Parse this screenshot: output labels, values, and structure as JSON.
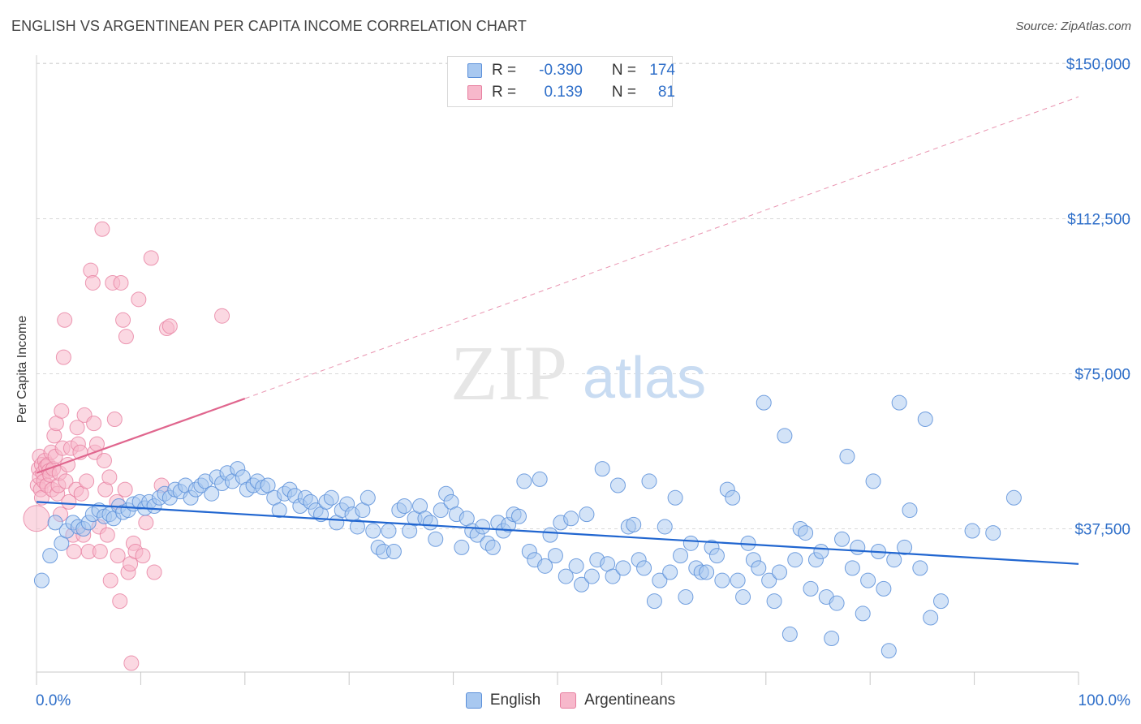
{
  "header": {
    "title": "ENGLISH VS ARGENTINEAN PER CAPITA INCOME CORRELATION CHART",
    "source": "Source: ZipAtlas.com"
  },
  "watermark": {
    "zip": "ZIP",
    "atlas": "atlas"
  },
  "stats": {
    "english": {
      "r_label": "R =",
      "r_value": "-0.390",
      "n_label": "N =",
      "n_value": "174"
    },
    "argentineans": {
      "r_label": "R =",
      "r_value": "0.139",
      "n_label": "N =",
      "n_value": "81"
    }
  },
  "legend": {
    "english": "English",
    "argentineans": "Argentineans"
  },
  "colors": {
    "english_fill": "#a8c8f0",
    "english_stroke": "#5b8fd9",
    "english_line": "#2166d0",
    "argentinean_fill": "#f7b8cb",
    "argentinean_stroke": "#e77fa0",
    "argentinean_line": "#e0668e",
    "tick_label": "#2f6fc9",
    "grid": "#d9d9d9"
  },
  "chart_data": {
    "type": "scatter",
    "title": "ENGLISH VS ARGENTINEAN PER CAPITA INCOME CORRELATION CHART",
    "xlabel": "",
    "ylabel": "Per Capita Income",
    "x_unit": "percent",
    "xlim": [
      0,
      100
    ],
    "ylim": [
      0,
      155000
    ],
    "x_tick_labels": [
      "0.0%",
      "100.0%"
    ],
    "y_ticks": [
      37500,
      75000,
      112500,
      150000
    ],
    "y_tick_labels": [
      "$37,500",
      "$75,000",
      "$112,500",
      "$150,000"
    ],
    "grid": "horizontal dashed",
    "legend_position": "bottom-center",
    "series": [
      {
        "name": "English",
        "r": -0.39,
        "n": 174,
        "trend": {
          "x": [
            0,
            100
          ],
          "y": [
            44000,
            29000
          ],
          "style": "solid"
        },
        "points": [
          [
            0.5,
            25000
          ],
          [
            1.3,
            31000
          ],
          [
            1.8,
            39000
          ],
          [
            2.4,
            34000
          ],
          [
            2.9,
            37000
          ],
          [
            3.5,
            39000
          ],
          [
            4.0,
            38000
          ],
          [
            4.5,
            37500
          ],
          [
            5.0,
            39000
          ],
          [
            5.4,
            41000
          ],
          [
            6.0,
            42000
          ],
          [
            6.5,
            40500
          ],
          [
            7.0,
            41000
          ],
          [
            7.4,
            40000
          ],
          [
            7.9,
            43000
          ],
          [
            8.3,
            41500
          ],
          [
            8.8,
            42000
          ],
          [
            9.3,
            43500
          ],
          [
            9.9,
            44000
          ],
          [
            10.4,
            42500
          ],
          [
            10.8,
            44000
          ],
          [
            11.3,
            43000
          ],
          [
            11.8,
            45000
          ],
          [
            12.3,
            46000
          ],
          [
            12.8,
            45000
          ],
          [
            13.3,
            47000
          ],
          [
            13.8,
            46500
          ],
          [
            14.3,
            48000
          ],
          [
            14.8,
            45000
          ],
          [
            15.3,
            47000
          ],
          [
            15.8,
            48000
          ],
          [
            16.2,
            49000
          ],
          [
            16.8,
            46000
          ],
          [
            17.3,
            50000
          ],
          [
            17.8,
            48500
          ],
          [
            18.3,
            51000
          ],
          [
            18.8,
            49000
          ],
          [
            19.3,
            52000
          ],
          [
            19.8,
            50000
          ],
          [
            20.2,
            47000
          ],
          [
            20.8,
            48000
          ],
          [
            21.2,
            49000
          ],
          [
            21.7,
            47500
          ],
          [
            22.2,
            48000
          ],
          [
            22.8,
            45000
          ],
          [
            23.3,
            42000
          ],
          [
            23.8,
            46000
          ],
          [
            24.3,
            47000
          ],
          [
            24.8,
            45500
          ],
          [
            25.3,
            43000
          ],
          [
            25.8,
            45000
          ],
          [
            26.3,
            44000
          ],
          [
            26.8,
            42000
          ],
          [
            27.3,
            41000
          ],
          [
            27.8,
            44000
          ],
          [
            28.3,
            45000
          ],
          [
            28.8,
            39000
          ],
          [
            29.3,
            42000
          ],
          [
            29.8,
            43500
          ],
          [
            30.3,
            41000
          ],
          [
            30.8,
            38000
          ],
          [
            31.3,
            42000
          ],
          [
            31.8,
            45000
          ],
          [
            32.3,
            37000
          ],
          [
            32.8,
            33000
          ],
          [
            33.3,
            32000
          ],
          [
            33.8,
            37000
          ],
          [
            34.3,
            32000
          ],
          [
            34.8,
            42000
          ],
          [
            35.3,
            43000
          ],
          [
            35.8,
            37000
          ],
          [
            36.3,
            40000
          ],
          [
            36.8,
            43000
          ],
          [
            37.3,
            40000
          ],
          [
            37.8,
            39000
          ],
          [
            38.3,
            35000
          ],
          [
            38.8,
            42000
          ],
          [
            39.3,
            46000
          ],
          [
            39.8,
            44000
          ],
          [
            40.3,
            41000
          ],
          [
            40.8,
            33000
          ],
          [
            41.3,
            40000
          ],
          [
            41.8,
            37000
          ],
          [
            42.3,
            36000
          ],
          [
            42.8,
            38000
          ],
          [
            43.3,
            34000
          ],
          [
            43.8,
            33000
          ],
          [
            44.3,
            39000
          ],
          [
            44.8,
            37000
          ],
          [
            45.3,
            38500
          ],
          [
            45.8,
            41000
          ],
          [
            46.3,
            40500
          ],
          [
            46.8,
            49000
          ],
          [
            47.3,
            32000
          ],
          [
            47.8,
            30000
          ],
          [
            48.3,
            49500
          ],
          [
            48.8,
            28500
          ],
          [
            49.3,
            36000
          ],
          [
            49.8,
            31000
          ],
          [
            50.3,
            39000
          ],
          [
            50.8,
            26000
          ],
          [
            51.3,
            40000
          ],
          [
            51.8,
            28500
          ],
          [
            52.3,
            24000
          ],
          [
            52.8,
            41000
          ],
          [
            53.3,
            26000
          ],
          [
            53.8,
            30000
          ],
          [
            54.3,
            52000
          ],
          [
            54.8,
            29000
          ],
          [
            55.3,
            26000
          ],
          [
            55.8,
            48000
          ],
          [
            56.3,
            28000
          ],
          [
            56.8,
            38000
          ],
          [
            57.3,
            38500
          ],
          [
            57.8,
            30000
          ],
          [
            58.3,
            28000
          ],
          [
            58.8,
            49000
          ],
          [
            59.3,
            20000
          ],
          [
            59.8,
            25000
          ],
          [
            60.3,
            38000
          ],
          [
            60.8,
            27000
          ],
          [
            61.3,
            45000
          ],
          [
            61.8,
            31000
          ],
          [
            62.3,
            21000
          ],
          [
            62.8,
            34000
          ],
          [
            63.3,
            28000
          ],
          [
            63.8,
            27000
          ],
          [
            64.3,
            27000
          ],
          [
            64.8,
            33000
          ],
          [
            65.3,
            31000
          ],
          [
            65.8,
            25000
          ],
          [
            66.3,
            47000
          ],
          [
            66.8,
            45000
          ],
          [
            67.3,
            25000
          ],
          [
            67.8,
            21000
          ],
          [
            68.3,
            34000
          ],
          [
            68.8,
            30000
          ],
          [
            69.3,
            28000
          ],
          [
            69.8,
            68000
          ],
          [
            70.3,
            25000
          ],
          [
            70.8,
            20000
          ],
          [
            71.3,
            27000
          ],
          [
            71.8,
            60000
          ],
          [
            72.3,
            12000
          ],
          [
            72.8,
            30000
          ],
          [
            73.3,
            37500
          ],
          [
            73.8,
            36500
          ],
          [
            74.3,
            23000
          ],
          [
            74.8,
            30000
          ],
          [
            75.3,
            32000
          ],
          [
            75.8,
            21000
          ],
          [
            76.3,
            11000
          ],
          [
            76.8,
            19500
          ],
          [
            77.3,
            35000
          ],
          [
            77.8,
            55000
          ],
          [
            78.3,
            28000
          ],
          [
            78.8,
            33000
          ],
          [
            79.3,
            17000
          ],
          [
            79.8,
            25000
          ],
          [
            80.3,
            49000
          ],
          [
            80.8,
            32000
          ],
          [
            81.3,
            23000
          ],
          [
            81.8,
            8000
          ],
          [
            82.3,
            30000
          ],
          [
            82.8,
            68000
          ],
          [
            83.3,
            33000
          ],
          [
            83.8,
            42000
          ],
          [
            84.8,
            28000
          ],
          [
            85.3,
            64000
          ],
          [
            85.8,
            16000
          ],
          [
            86.8,
            20000
          ],
          [
            89.8,
            37000
          ],
          [
            91.8,
            36500
          ],
          [
            93.8,
            45000
          ]
        ]
      },
      {
        "name": "Argentineans",
        "r": 0.139,
        "n": 81,
        "trend": {
          "x": [
            0,
            20,
            100
          ],
          "y": [
            51000,
            69000,
            142000
          ],
          "style": "solid to 20%, dashed beyond"
        },
        "points": [
          [
            0.0,
            40000
          ],
          [
            0.1,
            48000
          ],
          [
            0.2,
            52000
          ],
          [
            0.3,
            50000
          ],
          [
            0.3,
            55000
          ],
          [
            0.4,
            47000
          ],
          [
            0.5,
            53000
          ],
          [
            0.5,
            45000
          ],
          [
            0.6,
            51000
          ],
          [
            0.7,
            49000
          ],
          [
            0.8,
            54000
          ],
          [
            0.9,
            52500
          ],
          [
            1.0,
            48000
          ],
          [
            1.1,
            53000
          ],
          [
            1.2,
            51500
          ],
          [
            1.3,
            50500
          ],
          [
            1.4,
            56000
          ],
          [
            1.5,
            47000
          ],
          [
            1.6,
            52000
          ],
          [
            1.7,
            60000
          ],
          [
            1.8,
            55000
          ],
          [
            1.9,
            63000
          ],
          [
            2.0,
            46000
          ],
          [
            2.1,
            48000
          ],
          [
            2.2,
            51000
          ],
          [
            2.4,
            66000
          ],
          [
            2.5,
            57000
          ],
          [
            2.6,
            79000
          ],
          [
            2.7,
            88000
          ],
          [
            2.8,
            49000
          ],
          [
            3.0,
            53000
          ],
          [
            3.1,
            44000
          ],
          [
            3.3,
            57000
          ],
          [
            3.5,
            36000
          ],
          [
            3.6,
            32000
          ],
          [
            3.8,
            47000
          ],
          [
            3.9,
            62000
          ],
          [
            4.0,
            58000
          ],
          [
            4.2,
            56000
          ],
          [
            4.3,
            46000
          ],
          [
            4.5,
            36000
          ],
          [
            4.6,
            65000
          ],
          [
            4.8,
            49000
          ],
          [
            5.0,
            32000
          ],
          [
            5.2,
            100000
          ],
          [
            5.4,
            97000
          ],
          [
            5.5,
            63000
          ],
          [
            5.6,
            56000
          ],
          [
            5.8,
            58000
          ],
          [
            6.0,
            38000
          ],
          [
            6.1,
            32000
          ],
          [
            6.3,
            110000
          ],
          [
            6.5,
            54000
          ],
          [
            6.6,
            47000
          ],
          [
            6.8,
            36000
          ],
          [
            7.0,
            50000
          ],
          [
            7.1,
            25000
          ],
          [
            7.3,
            97000
          ],
          [
            7.5,
            64000
          ],
          [
            7.7,
            44000
          ],
          [
            7.8,
            31000
          ],
          [
            8.0,
            20000
          ],
          [
            8.1,
            97000
          ],
          [
            8.3,
            88000
          ],
          [
            8.5,
            47000
          ],
          [
            8.6,
            84000
          ],
          [
            8.8,
            27000
          ],
          [
            9.0,
            29000
          ],
          [
            9.1,
            5000
          ],
          [
            9.3,
            34000
          ],
          [
            9.5,
            32000
          ],
          [
            9.8,
            93000
          ],
          [
            10.2,
            31000
          ],
          [
            10.5,
            39000
          ],
          [
            11.0,
            103000
          ],
          [
            11.3,
            27000
          ],
          [
            12.0,
            48000
          ],
          [
            12.5,
            86000
          ],
          [
            12.8,
            86500
          ],
          [
            17.8,
            89000
          ],
          [
            2.3,
            41000
          ]
        ]
      }
    ]
  }
}
